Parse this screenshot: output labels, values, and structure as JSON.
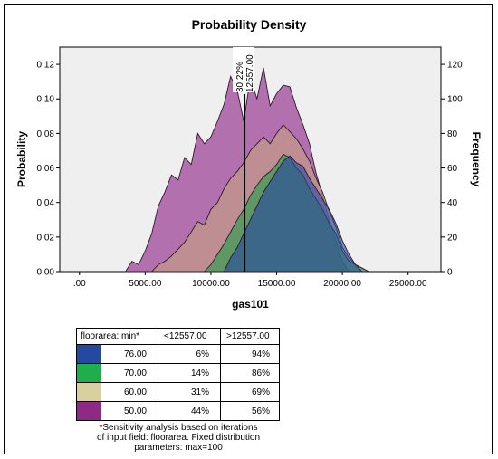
{
  "chart_data": {
    "type": "area",
    "title": "Probability Density",
    "xlabel": "gas101",
    "ylabel": "Probability",
    "y2label": "Frequency",
    "xlim": [
      -1500,
      27500
    ],
    "ylim": [
      0,
      0.13
    ],
    "y2lim": [
      0,
      130
    ],
    "x_ticks": [
      0,
      5000,
      10000,
      15000,
      20000,
      25000
    ],
    "x_tick_labels": [
      ".00",
      "5000.00",
      "10000.00",
      "15000.00",
      "20000.00",
      "25000.00"
    ],
    "y_ticks": [
      0,
      0.02,
      0.04,
      0.06,
      0.08,
      0.1,
      0.12
    ],
    "y_tick_labels": [
      "0.00",
      "0.02",
      "0.04",
      "0.06",
      "0.08",
      "0.10",
      "0.12"
    ],
    "y2_ticks": [
      0,
      20,
      40,
      60,
      80,
      100,
      120
    ],
    "y2_tick_labels": [
      "0",
      "20",
      "40",
      "60",
      "80",
      "100",
      "120"
    ],
    "grid": false,
    "marker": {
      "x": 12557,
      "label_pct": "30.22%",
      "label_val": "12557.00"
    },
    "series": [
      {
        "name": "50.00",
        "color": "#9b3f95",
        "opacity": 0.72,
        "x": [
          3500,
          4000,
          4500,
          5000,
          5500,
          6000,
          6500,
          7000,
          7500,
          8000,
          8500,
          9000,
          9500,
          10000,
          10500,
          11000,
          11500,
          12000,
          12500,
          13000,
          13500,
          14000,
          14500,
          15000,
          15500,
          16000,
          16500,
          17000,
          17500,
          18000,
          18500,
          19000,
          19500,
          20000,
          20500
        ],
        "y": [
          0,
          0.006,
          0.004,
          0.012,
          0.022,
          0.038,
          0.046,
          0.056,
          0.053,
          0.066,
          0.062,
          0.08,
          0.074,
          0.078,
          0.087,
          0.097,
          0.113,
          0.105,
          0.087,
          0.112,
          0.1,
          0.118,
          0.096,
          0.103,
          0.108,
          0.107,
          0.095,
          0.085,
          0.074,
          0.057,
          0.044,
          0.03,
          0.018,
          0.006,
          0
        ]
      },
      {
        "name": "60.00",
        "color": "#c9a87a",
        "opacity": 0.55,
        "x": [
          5500,
          6000,
          6500,
          7000,
          7500,
          8000,
          8500,
          9000,
          9500,
          10000,
          10500,
          11000,
          11500,
          12000,
          12500,
          13000,
          13500,
          14000,
          14500,
          15000,
          15500,
          16000,
          16500,
          17000,
          17500,
          18000,
          18500,
          19000,
          19500,
          20000,
          20500,
          21000,
          21500,
          22000
        ],
        "y": [
          0,
          0.004,
          0.006,
          0.009,
          0.013,
          0.017,
          0.023,
          0.029,
          0.027,
          0.036,
          0.04,
          0.048,
          0.054,
          0.058,
          0.063,
          0.07,
          0.074,
          0.078,
          0.074,
          0.08,
          0.085,
          0.081,
          0.077,
          0.071,
          0.064,
          0.054,
          0.046,
          0.035,
          0.026,
          0.014,
          0.008,
          0.004,
          0.002,
          0
        ]
      },
      {
        "name": "70.00",
        "color": "#1f9d48",
        "opacity": 0.6,
        "x": [
          9500,
          10000,
          10500,
          11000,
          11500,
          12000,
          12500,
          13000,
          13500,
          14000,
          14500,
          15000,
          15500,
          16000,
          16500,
          17000,
          17500,
          18000,
          18500,
          19000,
          19500,
          20000,
          20500,
          21000,
          21500,
          22000
        ],
        "y": [
          0,
          0.004,
          0.01,
          0.016,
          0.023,
          0.03,
          0.036,
          0.044,
          0.05,
          0.055,
          0.058,
          0.062,
          0.068,
          0.066,
          0.06,
          0.056,
          0.048,
          0.042,
          0.036,
          0.028,
          0.022,
          0.012,
          0.006,
          0.004,
          0.002,
          0
        ]
      },
      {
        "name": "76.00",
        "color": "#2548a0",
        "opacity": 0.6,
        "x": [
          11000,
          11500,
          12000,
          12500,
          13000,
          13500,
          14000,
          14500,
          15000,
          15500,
          16000,
          16500,
          17000,
          17500,
          18000,
          18500,
          19000,
          19500,
          20000,
          20500,
          21000,
          21500
        ],
        "y": [
          0,
          0.008,
          0.014,
          0.022,
          0.03,
          0.038,
          0.046,
          0.052,
          0.058,
          0.064,
          0.067,
          0.063,
          0.061,
          0.054,
          0.048,
          0.042,
          0.036,
          0.028,
          0.018,
          0.01,
          0.004,
          0
        ]
      }
    ]
  },
  "legend_table": {
    "header": [
      "floorarea: min*",
      "<12557.00",
      ">12557.00"
    ],
    "rows": [
      {
        "value": "76.00",
        "color": "#2548a0",
        "below": "6%",
        "above": "94%"
      },
      {
        "value": "70.00",
        "color": "#1fae4a",
        "below": "14%",
        "above": "86%"
      },
      {
        "value": "60.00",
        "color": "#d9d0a0",
        "below": "31%",
        "above": "69%"
      },
      {
        "value": "50.00",
        "color": "#8e2a85",
        "below": "44%",
        "above": "56%"
      }
    ]
  },
  "footnote": "*Sensitivity analysis based on iterations\nof input field: floorarea. Fixed distribution\nparameters: max=100"
}
